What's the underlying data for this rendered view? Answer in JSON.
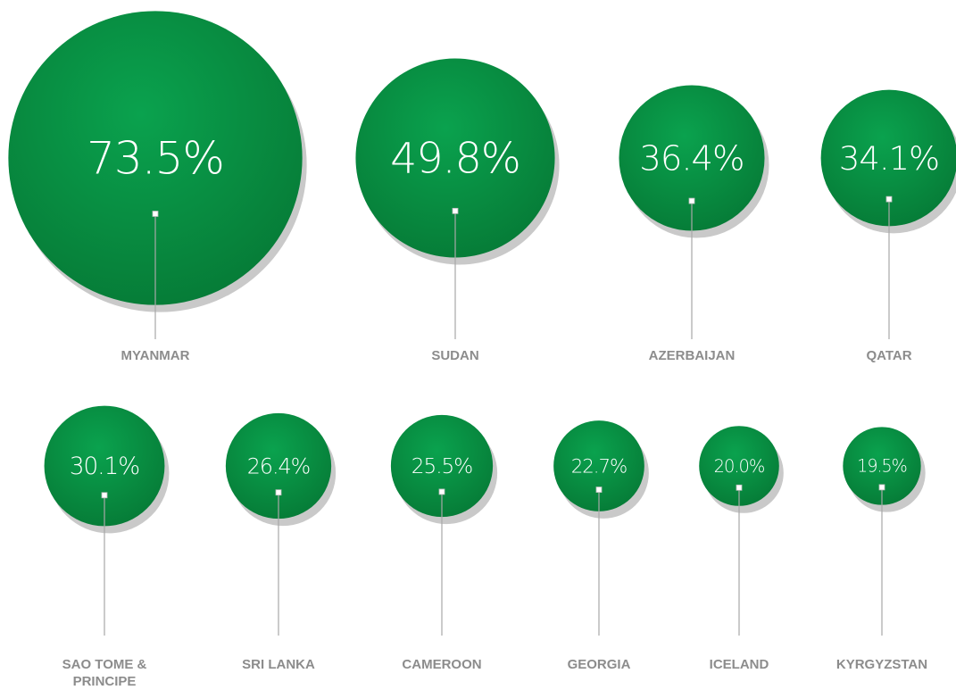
{
  "chart_data": {
    "type": "bubble",
    "categories": [
      "MYANMAR",
      "SUDAN",
      "AZERBAIJAN",
      "QATAR",
      "SAO TOME & PRINCIPE",
      "SRI LANKA",
      "CAMEROON",
      "GEORGIA",
      "ICELAND",
      "KYRGYZSTAN"
    ],
    "values": [
      73.5,
      49.8,
      36.4,
      34.1,
      30.1,
      26.4,
      25.5,
      22.7,
      20.0,
      19.5
    ],
    "value_labels": [
      "73.5%",
      "49.8%",
      "36.4%",
      "34.1%",
      "30.1%",
      "26.4%",
      "25.5%",
      "22.7%",
      "20.0%",
      "19.5%"
    ],
    "color": "#07893f"
  }
}
